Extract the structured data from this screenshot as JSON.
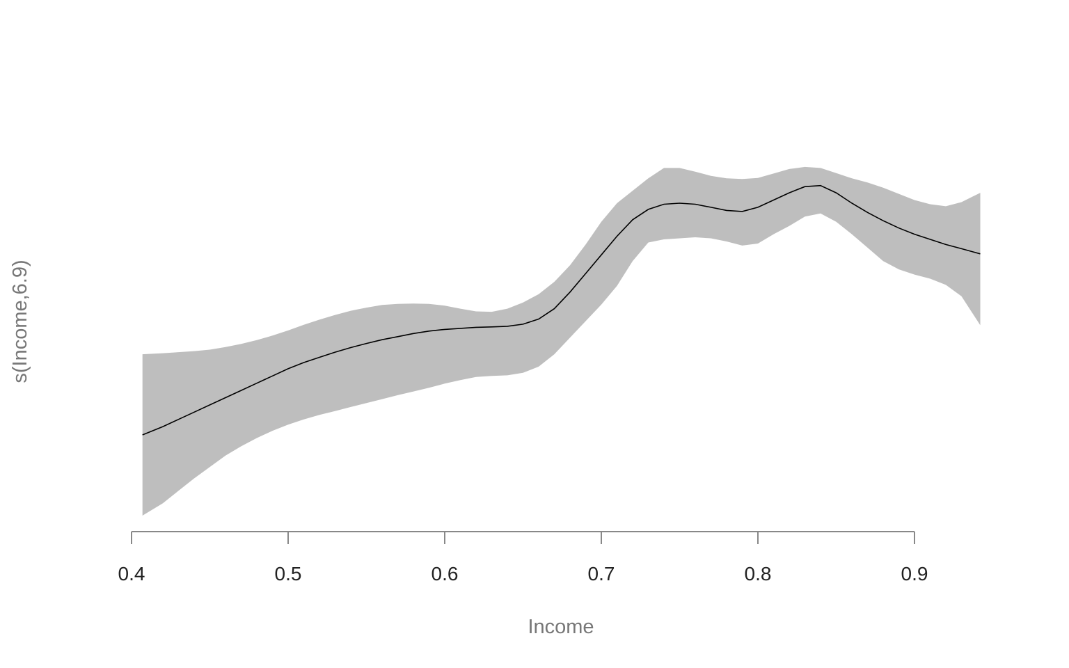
{
  "chart_data": {
    "type": "line",
    "title": "",
    "xlabel": "Income",
    "ylabel": "s(Income,6.9)",
    "xlim": [
      0.4,
      0.94
    ],
    "ylim": [
      -1.0,
      1.3
    ],
    "x_ticks": [
      0.4,
      0.5,
      0.6,
      0.7,
      0.8,
      0.9
    ],
    "x_tick_labels": [
      "0.4",
      "0.5",
      "0.6",
      "0.7",
      "0.8",
      "0.9"
    ],
    "y_axis_drawn": false,
    "grid": false,
    "legend": "none",
    "colors": {
      "line": "#000000",
      "band": "#bebebe",
      "axis": "#888888",
      "tick_label": "#222222",
      "axis_title": "#777777"
    },
    "series": [
      {
        "x": [
          0.407,
          0.42,
          0.43,
          0.44,
          0.45,
          0.46,
          0.47,
          0.48,
          0.49,
          0.5,
          0.51,
          0.52,
          0.53,
          0.54,
          0.55,
          0.56,
          0.57,
          0.58,
          0.59,
          0.6,
          0.61,
          0.62,
          0.63,
          0.64,
          0.65,
          0.66,
          0.67,
          0.68,
          0.69,
          0.7,
          0.71,
          0.72,
          0.73,
          0.74,
          0.75,
          0.76,
          0.77,
          0.78,
          0.79,
          0.8,
          0.81,
          0.82,
          0.83,
          0.84,
          0.85,
          0.86,
          0.87,
          0.88,
          0.89,
          0.9,
          0.91,
          0.92,
          0.93,
          0.942
        ],
        "fit": [
          -0.6,
          -0.56,
          -0.525,
          -0.49,
          -0.455,
          -0.42,
          -0.385,
          -0.35,
          -0.315,
          -0.28,
          -0.25,
          -0.225,
          -0.2,
          -0.178,
          -0.158,
          -0.14,
          -0.125,
          -0.11,
          -0.098,
          -0.09,
          -0.085,
          -0.08,
          -0.078,
          -0.075,
          -0.065,
          -0.04,
          0.01,
          0.09,
          0.18,
          0.27,
          0.36,
          0.44,
          0.49,
          0.515,
          0.52,
          0.515,
          0.5,
          0.485,
          0.48,
          0.5,
          0.535,
          0.57,
          0.6,
          0.605,
          0.57,
          0.52,
          0.475,
          0.435,
          0.4,
          0.37,
          0.345,
          0.32,
          0.3,
          0.275
        ],
        "upper": [
          -0.21,
          -0.205,
          -0.2,
          -0.195,
          -0.188,
          -0.175,
          -0.16,
          -0.142,
          -0.12,
          -0.095,
          -0.068,
          -0.043,
          -0.02,
          0.0,
          0.015,
          0.028,
          0.033,
          0.035,
          0.033,
          0.025,
          0.01,
          -0.003,
          -0.005,
          0.01,
          0.04,
          0.08,
          0.14,
          0.22,
          0.32,
          0.43,
          0.52,
          0.58,
          0.64,
          0.69,
          0.69,
          0.672,
          0.652,
          0.64,
          0.637,
          0.642,
          0.663,
          0.685,
          0.695,
          0.69,
          0.665,
          0.64,
          0.62,
          0.595,
          0.565,
          0.535,
          0.515,
          0.505,
          0.525,
          0.57
        ],
        "lower": [
          -0.99,
          -0.93,
          -0.87,
          -0.81,
          -0.755,
          -0.7,
          -0.655,
          -0.615,
          -0.58,
          -0.55,
          -0.525,
          -0.503,
          -0.485,
          -0.465,
          -0.446,
          -0.427,
          -0.408,
          -0.39,
          -0.372,
          -0.352,
          -0.335,
          -0.32,
          -0.315,
          -0.312,
          -0.3,
          -0.27,
          -0.21,
          -0.13,
          -0.05,
          0.03,
          0.12,
          0.24,
          0.33,
          0.345,
          0.35,
          0.355,
          0.35,
          0.335,
          0.315,
          0.325,
          0.37,
          0.41,
          0.455,
          0.47,
          0.43,
          0.37,
          0.305,
          0.24,
          0.2,
          0.175,
          0.155,
          0.125,
          0.07,
          -0.07
        ]
      }
    ]
  }
}
